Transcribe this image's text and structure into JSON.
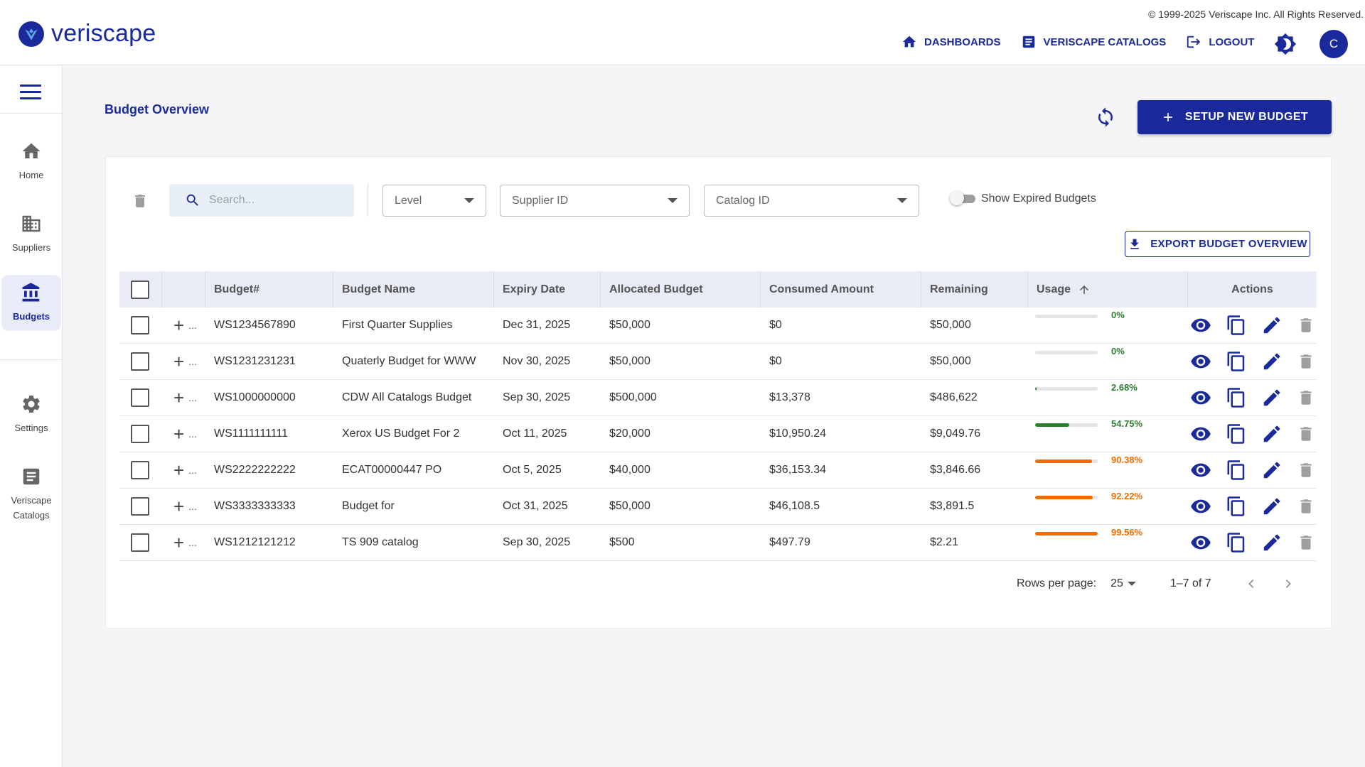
{
  "app": {
    "brand": "veriscape",
    "copyright": "© 1999-2025 Veriscape Inc. All Rights Reserved."
  },
  "topnav": {
    "dashboards": "DASHBOARDS",
    "catalogs": "VERISCAPE CATALOGS",
    "logout": "LOGOUT",
    "avatar_initial": "C"
  },
  "sidebar": {
    "items": [
      {
        "label": "Home",
        "icon": "home-icon"
      },
      {
        "label": "Suppliers",
        "icon": "building-icon"
      },
      {
        "label": "Budgets",
        "icon": "bank-icon",
        "active": true
      },
      {
        "label": "Settings",
        "icon": "gear-icon"
      },
      {
        "label": "Veriscape Catalogs",
        "icon": "catalog-icon"
      }
    ]
  },
  "page": {
    "title": "Budget Overview",
    "setup_button": "SETUP NEW BUDGET",
    "export_button": "EXPORT BUDGET OVERVIEW"
  },
  "filters": {
    "search_placeholder": "Search...",
    "level": "Level",
    "supplier": "Supplier ID",
    "catalog": "Catalog ID",
    "show_expired": "Show Expired Budgets",
    "show_expired_on": false
  },
  "table": {
    "headers": {
      "budget_num": "Budget#",
      "name": "Budget Name",
      "expiry": "Expiry Date",
      "allocated": "Allocated Budget",
      "consumed": "Consumed Amount",
      "remaining": "Remaining",
      "usage": "Usage",
      "actions": "Actions"
    },
    "rows": [
      {
        "num": "WS1234567890",
        "name": "First Quarter Supplies",
        "expiry": "Dec 31, 2025",
        "allocated": "$50,000",
        "consumed": "$0",
        "remaining": "$50,000",
        "usage_label": "0%",
        "usage": 0,
        "color": "#2e7d32"
      },
      {
        "num": "WS1231231231",
        "name": "Quaterly Budget for WWW",
        "expiry": "Nov 30, 2025",
        "allocated": "$50,000",
        "consumed": "$0",
        "remaining": "$50,000",
        "usage_label": "0%",
        "usage": 0,
        "color": "#2e7d32"
      },
      {
        "num": "WS1000000000",
        "name": "CDW All Catalogs Budget",
        "expiry": "Sep 30, 2025",
        "allocated": "$500,000",
        "consumed": "$13,378",
        "remaining": "$486,622",
        "usage_label": "2.68%",
        "usage": 2.68,
        "color": "#2e7d32"
      },
      {
        "num": "WS1111111111",
        "name": "Xerox US Budget For 2",
        "expiry": "Oct 11, 2025",
        "allocated": "$20,000",
        "consumed": "$10,950.24",
        "remaining": "$9,049.76",
        "usage_label": "54.75%",
        "usage": 54.75,
        "color": "#2e7d32"
      },
      {
        "num": "WS2222222222",
        "name": "ECAT00000447 PO",
        "expiry": "Oct 5, 2025",
        "allocated": "$40,000",
        "consumed": "$36,153.34",
        "remaining": "$3,846.66",
        "usage_label": "90.38%",
        "usage": 90.38,
        "color": "#ef6c00"
      },
      {
        "num": "WS3333333333",
        "name": "Budget for",
        "expiry": "Oct 31, 2025",
        "allocated": "$50,000",
        "consumed": "$46,108.5",
        "remaining": "$3,891.5",
        "usage_label": "92.22%",
        "usage": 92.22,
        "color": "#ef6c00"
      },
      {
        "num": "WS1212121212",
        "name": "TS 909 catalog",
        "expiry": "Sep 30, 2025",
        "allocated": "$500",
        "consumed": "$497.79",
        "remaining": "$2.21",
        "usage_label": "99.56%",
        "usage": 99.56,
        "color": "#ef6c00"
      }
    ]
  },
  "pagination": {
    "rows_per_page_label": "Rows per page:",
    "rows_per_page": "25",
    "range": "1–7 of 7"
  },
  "colors": {
    "primary": "#1a2a9c",
    "header_row": "#e9ebf7",
    "success": "#2e7d32",
    "warning": "#ef6c00"
  }
}
